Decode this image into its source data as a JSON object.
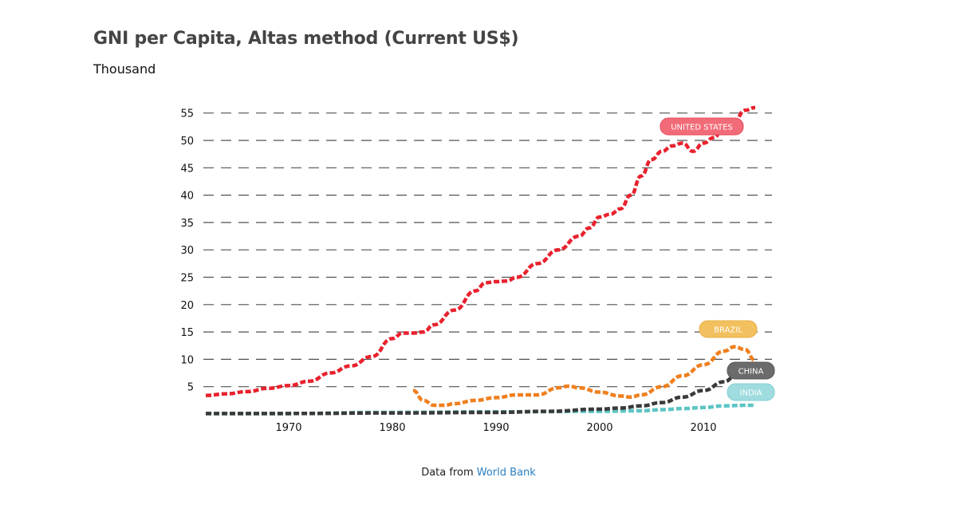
{
  "header": {
    "title": "GNI per Capita, Altas method (Current US$)",
    "subtitle": "Thousand"
  },
  "footer": {
    "prefix": "Data from",
    "link_text": "World Bank"
  },
  "colors": {
    "united_states": "#e8222e",
    "brazil": "#f07f1d",
    "china": "#3a3a3a",
    "india": "#5cc4c4",
    "label_united_states": "#f26b78",
    "label_brazil": "#f2c05e",
    "label_china": "#6b6b6b",
    "label_india": "#9fdcdf",
    "grid": "#333333"
  },
  "chart_data": {
    "type": "line",
    "title": "GNI per Capita, Altas method (Current US$)",
    "subtitle": "Thousand",
    "xlabel": "",
    "ylabel": "Thousand",
    "x_ticks": [
      1970,
      1980,
      1990,
      2000,
      2010
    ],
    "y_ticks": [
      5,
      10,
      15,
      20,
      25,
      30,
      35,
      40,
      45,
      50,
      55
    ],
    "xlim": [
      1962,
      2015
    ],
    "ylim": [
      0,
      56
    ],
    "grid": "horizontal dashed",
    "legend": "inline labels at line ends",
    "series": [
      {
        "name": "UNITED STATES",
        "x": [
          1962,
          1964,
          1966,
          1968,
          1970,
          1972,
          1974,
          1976,
          1978,
          1980,
          1981,
          1982,
          1983,
          1984,
          1986,
          1988,
          1989,
          1990,
          1991,
          1992,
          1994,
          1996,
          1998,
          1999,
          2000,
          2001,
          2002,
          2003,
          2004,
          2005,
          2006,
          2007,
          2008,
          2009,
          2010,
          2011,
          2012,
          2013,
          2014,
          2015
        ],
        "values": [
          3.4,
          3.7,
          4.1,
          4.7,
          5.2,
          6.0,
          7.5,
          8.8,
          10.5,
          13.8,
          14.8,
          14.8,
          15.0,
          16.3,
          19.0,
          22.5,
          24.0,
          24.2,
          24.3,
          25.0,
          27.5,
          30.0,
          32.5,
          34.0,
          36.0,
          36.5,
          37.5,
          40.0,
          43.5,
          46.5,
          48.0,
          49.0,
          49.5,
          48.0,
          49.5,
          50.5,
          52.5,
          53.5,
          55.5,
          56.0
        ]
      },
      {
        "name": "BRAZIL",
        "x": [
          1982,
          1983,
          1984,
          1985,
          1986,
          1988,
          1990,
          1992,
          1994,
          1996,
          1997,
          1998,
          2000,
          2002,
          2003,
          2004,
          2006,
          2008,
          2010,
          2012,
          2013,
          2014,
          2015
        ],
        "values": [
          4.3,
          2.5,
          1.6,
          1.6,
          1.9,
          2.5,
          3.0,
          3.5,
          3.5,
          4.8,
          5.1,
          4.8,
          4.0,
          3.3,
          3.1,
          3.5,
          5.0,
          7.0,
          9.0,
          11.5,
          12.3,
          11.8,
          9.8
        ]
      },
      {
        "name": "CHINA",
        "x": [
          1962,
          1970,
          1980,
          1990,
          1995,
          2000,
          2002,
          2004,
          2006,
          2008,
          2010,
          2012,
          2013,
          2014
        ],
        "values": [
          0.1,
          0.1,
          0.2,
          0.3,
          0.5,
          0.9,
          1.1,
          1.5,
          2.1,
          3.1,
          4.3,
          5.9,
          6.8,
          7.5
        ]
      },
      {
        "name": "INDIA",
        "x": [
          1962,
          1970,
          1980,
          1990,
          2000,
          2004,
          2006,
          2008,
          2010,
          2012,
          2014,
          2015
        ],
        "values": [
          0.1,
          0.1,
          0.3,
          0.4,
          0.5,
          0.6,
          0.8,
          1.0,
          1.2,
          1.5,
          1.6,
          1.6
        ]
      }
    ]
  }
}
